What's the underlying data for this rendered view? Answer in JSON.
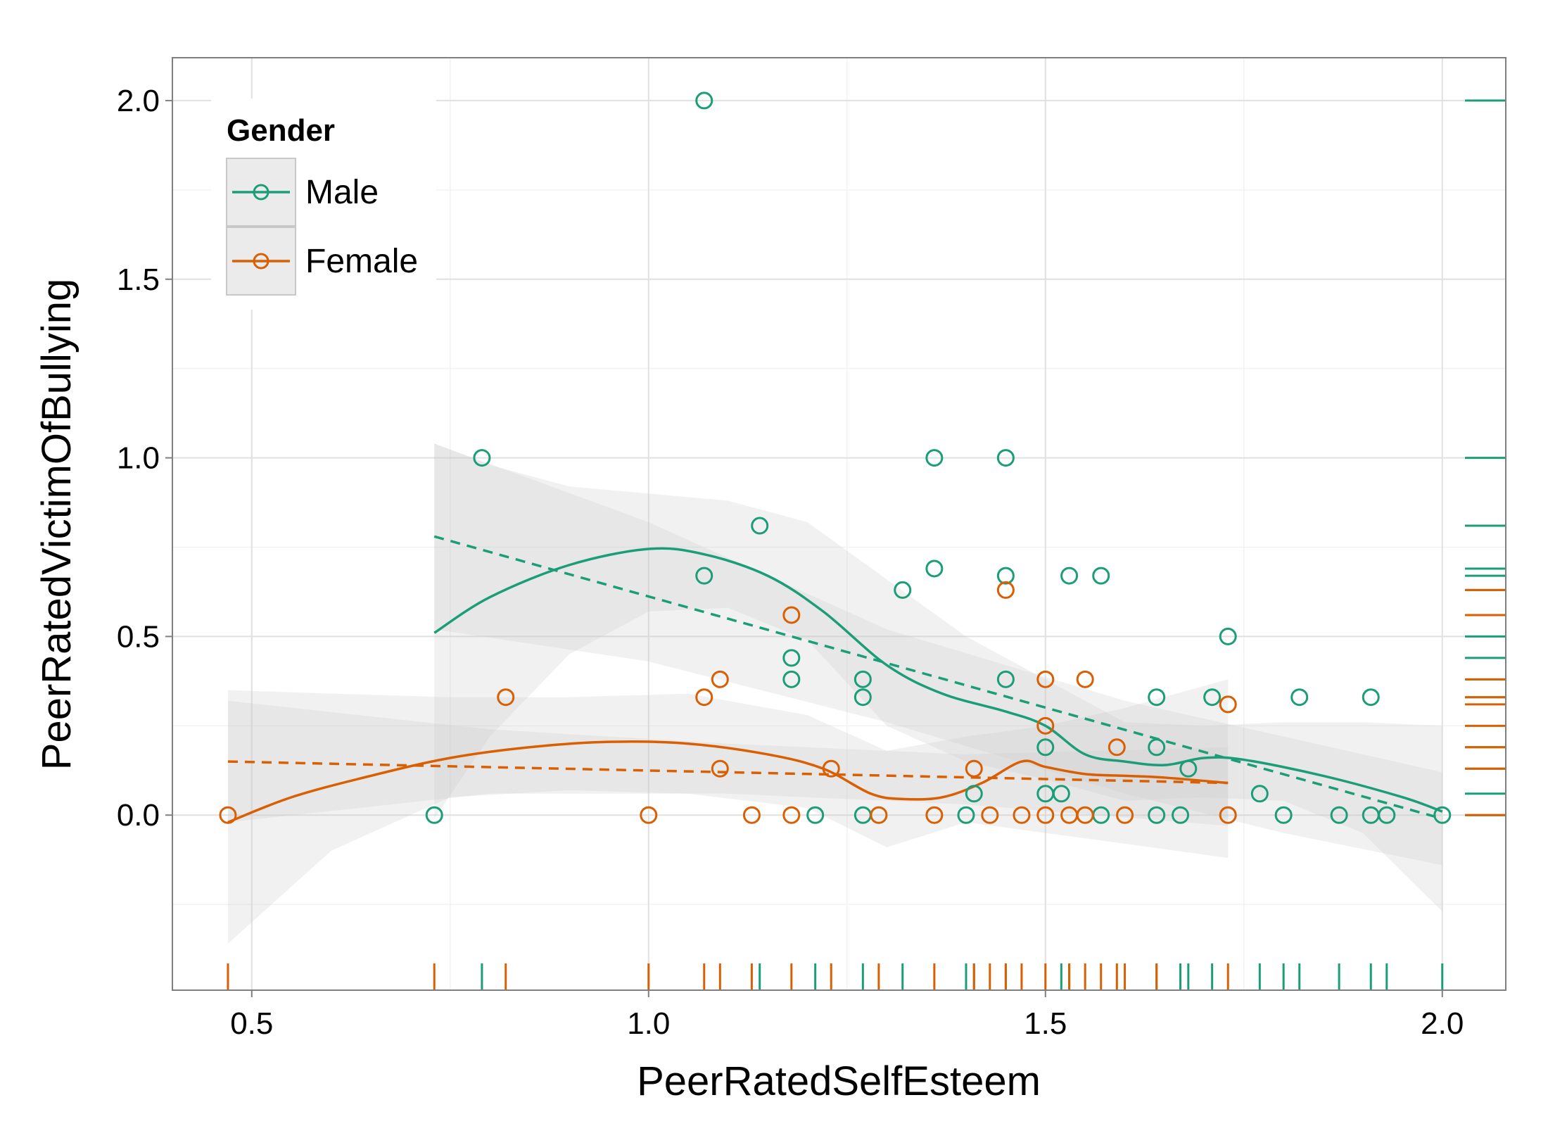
{
  "chart_data": {
    "type": "scatter",
    "xlabel": "PeerRatedSelfEsteem",
    "ylabel": "PeerRatedVictimOfBullying",
    "xlim": [
      0.4,
      2.08
    ],
    "ylim": [
      -0.49,
      2.12
    ],
    "x_ticks": [
      "0.5",
      "1.0",
      "1.5",
      "2.0"
    ],
    "y_ticks": [
      "0.0",
      "0.5",
      "1.0",
      "1.5",
      "2.0"
    ],
    "grid": true,
    "legend": {
      "title": "Gender",
      "position": "top-left"
    },
    "series": [
      {
        "name": "Male",
        "color": "#1b9e77",
        "points": [
          [
            0.73,
            0.0
          ],
          [
            0.79,
            1.0
          ],
          [
            1.07,
            2.0
          ],
          [
            1.07,
            0.67
          ],
          [
            1.14,
            0.81
          ],
          [
            1.18,
            0.44
          ],
          [
            1.18,
            0.38
          ],
          [
            1.21,
            0.0
          ],
          [
            1.27,
            0.38
          ],
          [
            1.27,
            0.33
          ],
          [
            1.27,
            0.0
          ],
          [
            1.32,
            0.63
          ],
          [
            1.36,
            1.0
          ],
          [
            1.36,
            0.69
          ],
          [
            1.4,
            0.0
          ],
          [
            1.41,
            0.06
          ],
          [
            1.45,
            1.0
          ],
          [
            1.45,
            0.67
          ],
          [
            1.45,
            0.38
          ],
          [
            1.5,
            0.19
          ],
          [
            1.5,
            0.06
          ],
          [
            1.52,
            0.06
          ],
          [
            1.53,
            0.67
          ],
          [
            1.57,
            0.67
          ],
          [
            1.57,
            0.0
          ],
          [
            1.64,
            0.33
          ],
          [
            1.64,
            0.19
          ],
          [
            1.64,
            0.0
          ],
          [
            1.67,
            0.0
          ],
          [
            1.68,
            0.13
          ],
          [
            1.71,
            0.33
          ],
          [
            1.73,
            0.5
          ],
          [
            1.77,
            0.06
          ],
          [
            1.8,
            0.0
          ],
          [
            1.82,
            0.33
          ],
          [
            1.87,
            0.0
          ],
          [
            1.91,
            0.33
          ],
          [
            1.91,
            0.0
          ],
          [
            1.93,
            0.0
          ],
          [
            2.0,
            0.0
          ]
        ],
        "loess": [
          [
            0.73,
            0.51
          ],
          [
            0.8,
            0.61
          ],
          [
            0.9,
            0.7
          ],
          [
            1.0,
            0.745
          ],
          [
            1.07,
            0.73
          ],
          [
            1.15,
            0.67
          ],
          [
            1.22,
            0.57
          ],
          [
            1.3,
            0.42
          ],
          [
            1.37,
            0.34
          ],
          [
            1.45,
            0.29
          ],
          [
            1.5,
            0.25
          ],
          [
            1.55,
            0.17
          ],
          [
            1.6,
            0.15
          ],
          [
            1.65,
            0.14
          ],
          [
            1.7,
            0.16
          ],
          [
            1.75,
            0.155
          ],
          [
            1.85,
            0.11
          ],
          [
            1.95,
            0.05
          ],
          [
            2.0,
            0.01
          ]
        ],
        "linear": [
          [
            0.73,
            0.78
          ],
          [
            2.0,
            -0.01
          ]
        ],
        "loess_band": {
          "x": [
            0.73,
            0.8,
            0.9,
            1.0,
            1.1,
            1.2,
            1.3,
            1.4,
            1.5,
            1.6,
            1.7,
            1.8,
            1.9,
            2.0
          ],
          "upper": [
            1.04,
            0.98,
            0.92,
            0.9,
            0.88,
            0.82,
            0.66,
            0.5,
            0.38,
            0.26,
            0.25,
            0.26,
            0.26,
            0.25
          ],
          "lower": [
            -0.01,
            0.22,
            0.45,
            0.57,
            0.58,
            0.49,
            0.25,
            0.15,
            0.1,
            0.04,
            0.05,
            0.04,
            -0.05,
            -0.27
          ]
        },
        "linear_band": {
          "x": [
            0.73,
            1.0,
            1.3,
            1.6,
            1.8,
            2.0
          ],
          "upper": [
            1.04,
            0.82,
            0.52,
            0.32,
            0.22,
            0.12
          ],
          "lower": [
            0.52,
            0.43,
            0.26,
            0.06,
            -0.05,
            -0.14
          ]
        },
        "rug_x": [
          0.79,
          1.14,
          1.21,
          1.27,
          1.32,
          1.4,
          1.41,
          1.45,
          1.52,
          1.53,
          1.64,
          1.67,
          1.68,
          1.71,
          1.77,
          1.8,
          1.82,
          1.87,
          1.91,
          1.93,
          2.0
        ],
        "rug_y": [
          2.0,
          1.0,
          0.81,
          0.69,
          0.67,
          0.63,
          0.5,
          0.44,
          0.38,
          0.33,
          0.19,
          0.13,
          0.06,
          0.0
        ]
      },
      {
        "name": "Female",
        "color": "#d95f02",
        "points": [
          [
            0.47,
            0.0
          ],
          [
            0.82,
            0.33
          ],
          [
            1.0,
            0.0
          ],
          [
            1.07,
            0.33
          ],
          [
            1.09,
            0.38
          ],
          [
            1.09,
            0.13
          ],
          [
            1.13,
            0.0
          ],
          [
            1.18,
            0.56
          ],
          [
            1.18,
            0.0
          ],
          [
            1.23,
            0.13
          ],
          [
            1.29,
            0.0
          ],
          [
            1.36,
            0.0
          ],
          [
            1.41,
            0.13
          ],
          [
            1.43,
            0.0
          ],
          [
            1.45,
            0.63
          ],
          [
            1.47,
            0.0
          ],
          [
            1.5,
            0.38
          ],
          [
            1.5,
            0.25
          ],
          [
            1.5,
            0.0
          ],
          [
            1.53,
            0.0
          ],
          [
            1.55,
            0.38
          ],
          [
            1.55,
            0.0
          ],
          [
            1.59,
            0.19
          ],
          [
            1.6,
            0.0
          ],
          [
            1.73,
            0.31
          ],
          [
            1.73,
            0.0
          ]
        ],
        "loess": [
          [
            0.47,
            -0.02
          ],
          [
            0.55,
            0.05
          ],
          [
            0.65,
            0.11
          ],
          [
            0.75,
            0.16
          ],
          [
            0.85,
            0.19
          ],
          [
            0.95,
            0.205
          ],
          [
            1.05,
            0.2
          ],
          [
            1.15,
            0.17
          ],
          [
            1.22,
            0.13
          ],
          [
            1.28,
            0.06
          ],
          [
            1.32,
            0.045
          ],
          [
            1.37,
            0.05
          ],
          [
            1.42,
            0.09
          ],
          [
            1.47,
            0.15
          ],
          [
            1.5,
            0.135
          ],
          [
            1.55,
            0.115
          ],
          [
            1.6,
            0.11
          ],
          [
            1.65,
            0.105
          ],
          [
            1.73,
            0.09
          ]
        ],
        "linear": [
          [
            0.47,
            0.15
          ],
          [
            1.73,
            0.09
          ]
        ],
        "loess_band": {
          "x": [
            0.47,
            0.6,
            0.75,
            0.9,
            1.05,
            1.2,
            1.3,
            1.4,
            1.5,
            1.6,
            1.73
          ],
          "upper": [
            0.35,
            0.34,
            0.33,
            0.33,
            0.34,
            0.28,
            0.18,
            0.22,
            0.25,
            0.3,
            0.38
          ],
          "lower": [
            -0.36,
            -0.1,
            0.05,
            0.07,
            0.06,
            0.02,
            -0.09,
            -0.02,
            -0.05,
            -0.08,
            -0.12
          ]
        },
        "linear_band": {
          "x": [
            0.47,
            0.8,
            1.1,
            1.4,
            1.73
          ],
          "upper": [
            0.32,
            0.24,
            0.2,
            0.17,
            0.19
          ],
          "lower": [
            -0.02,
            0.06,
            0.06,
            0.03,
            -0.03
          ]
        },
        "rug_x": [
          0.47,
          0.73,
          0.82,
          1.0,
          1.07,
          1.09,
          1.13,
          1.18,
          1.23,
          1.29,
          1.36,
          1.41,
          1.43,
          1.45,
          1.47,
          1.5,
          1.53,
          1.55,
          1.57,
          1.59,
          1.6,
          1.64,
          1.73
        ],
        "rug_y": [
          0.63,
          0.56,
          0.38,
          0.33,
          0.31,
          0.25,
          0.19,
          0.13,
          0.0
        ]
      }
    ]
  }
}
